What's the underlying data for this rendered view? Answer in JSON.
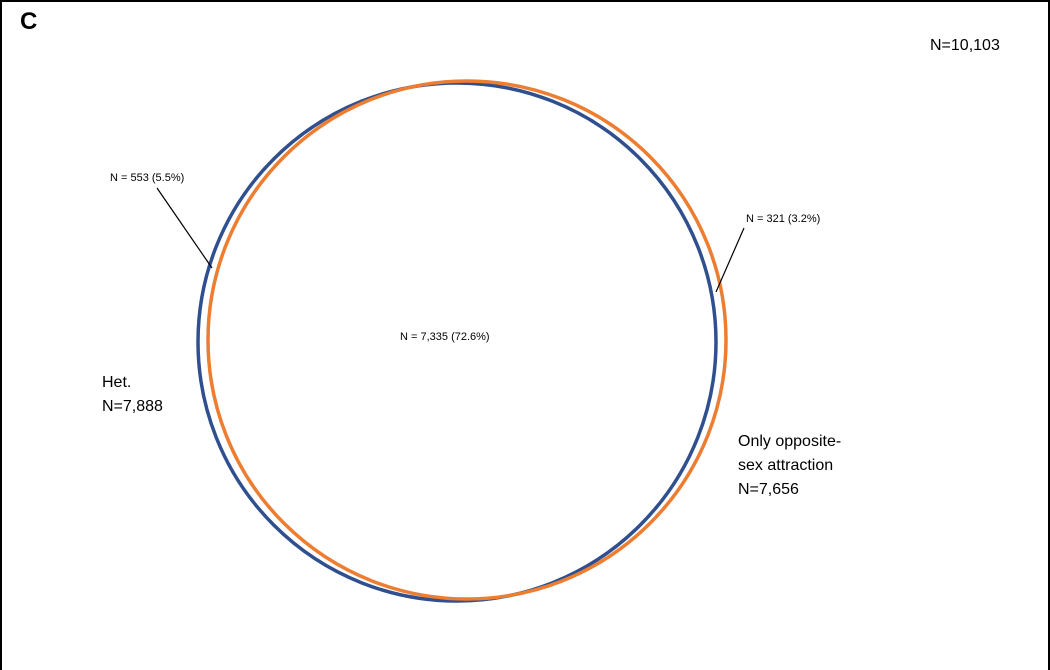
{
  "panel_letter": "C",
  "total": "N=10,103",
  "sets": {
    "het": {
      "label_line1": "Het.",
      "label_line2": "N=7,888",
      "color": "#2F4F8F"
    },
    "opposite": {
      "label_line1": "Only opposite-",
      "label_line2": "sex attraction",
      "label_line3": "N=7,656",
      "color": "#ED7D31"
    }
  },
  "regions": {
    "het_only": "N = 553 (5.5%)",
    "overlap": "N = 7,335 (72.6%)",
    "opposite_only": "N = 321 (3.2%)"
  }
}
